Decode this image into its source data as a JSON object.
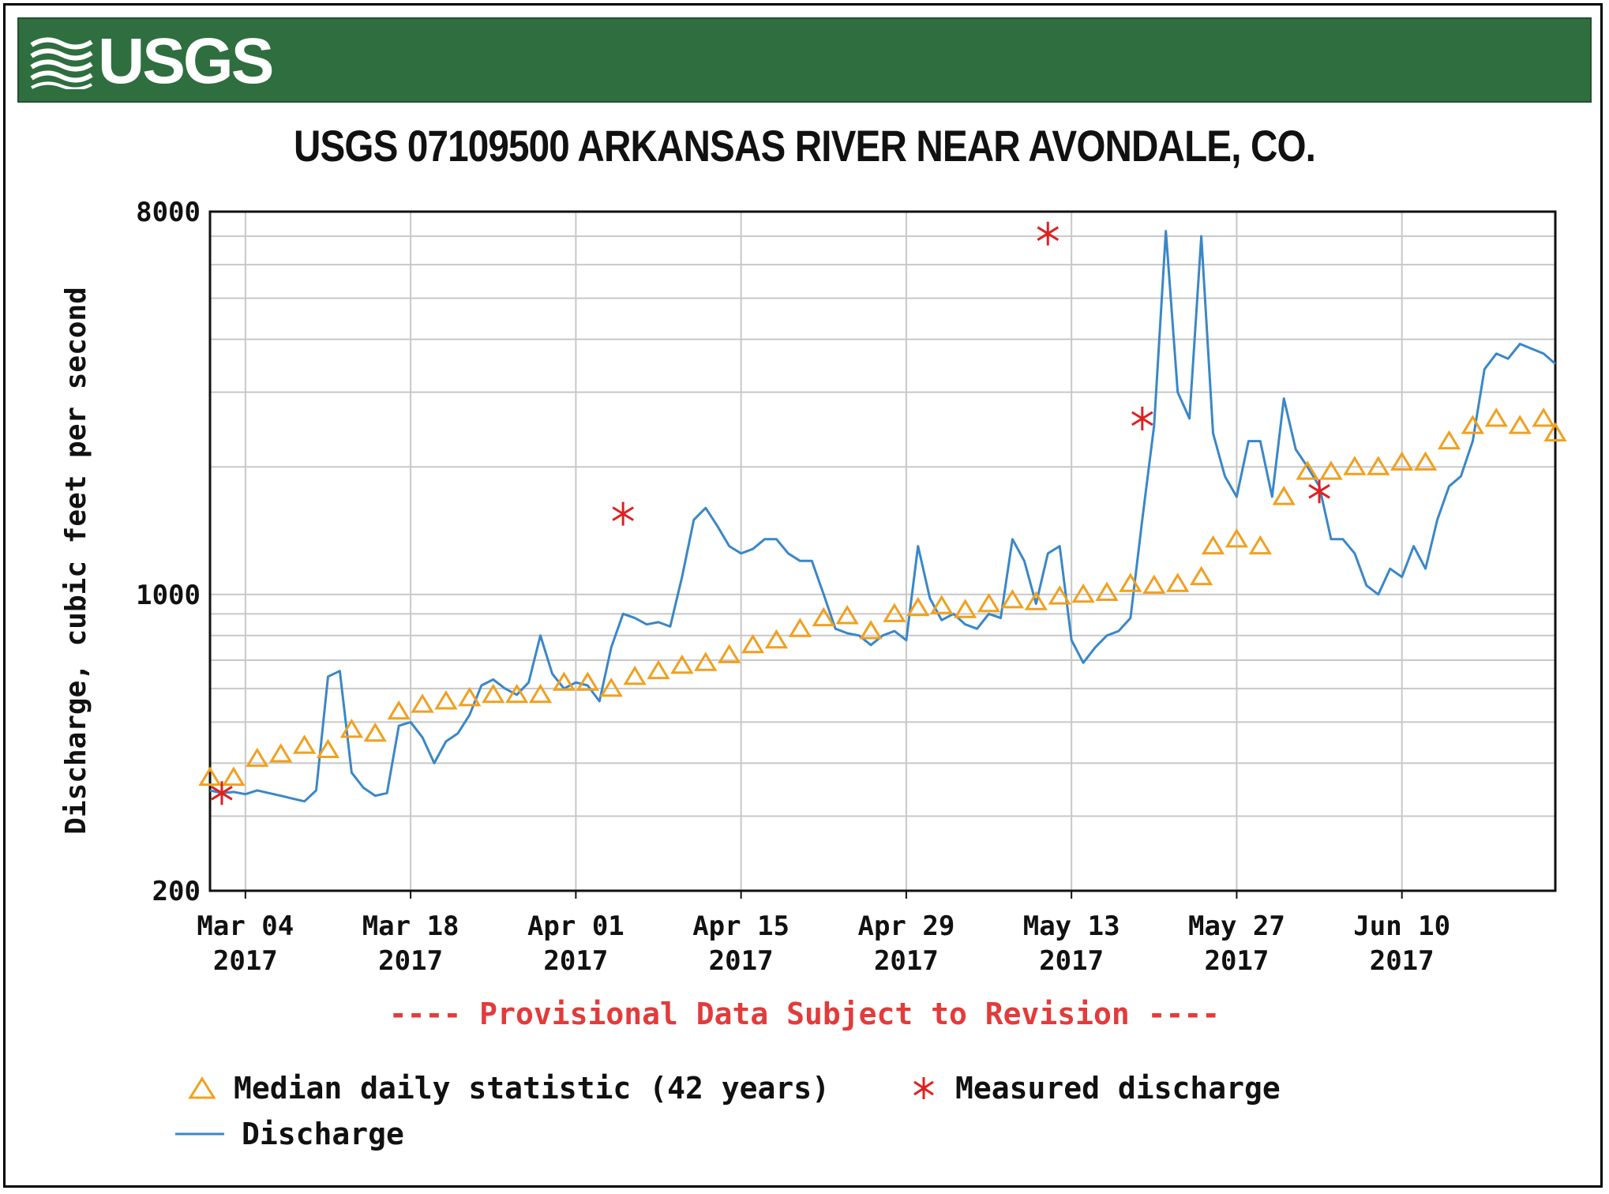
{
  "header": {
    "logo_text": "USGS",
    "logo_icon": "usgs-wave-icon",
    "background": "#2e6e3f"
  },
  "chart_data": {
    "type": "line",
    "title": "USGS 07109500 ARKANSAS RIVER NEAR AVONDALE, CO.",
    "ylabel": "Discharge, cubic feet per second",
    "xlabel": "",
    "yscale": "log",
    "ylim": [
      200,
      8000
    ],
    "y_ticks": [
      "200",
      "1000",
      "8000"
    ],
    "x_ticks": [
      {
        "date": "2017-03-04",
        "label": [
          "Mar 04",
          "2017"
        ]
      },
      {
        "date": "2017-03-18",
        "label": [
          "Mar 18",
          "2017"
        ]
      },
      {
        "date": "2017-04-01",
        "label": [
          "Apr 01",
          "2017"
        ]
      },
      {
        "date": "2017-04-15",
        "label": [
          "Apr 15",
          "2017"
        ]
      },
      {
        "date": "2017-04-29",
        "label": [
          "Apr 29",
          "2017"
        ]
      },
      {
        "date": "2017-05-13",
        "label": [
          "May 13",
          "2017"
        ]
      },
      {
        "date": "2017-05-27",
        "label": [
          "May 27",
          "2017"
        ]
      },
      {
        "date": "2017-06-10",
        "label": [
          "Jun 10",
          "2017"
        ]
      }
    ],
    "xlim": [
      "2017-03-01",
      "2017-06-23"
    ],
    "grid": true,
    "colors": {
      "discharge": "#3a87c8",
      "median": "#f0a020",
      "measured": "#e02020"
    },
    "series": [
      {
        "name": "Discharge",
        "style": "line",
        "points": [
          [
            "2017-03-01",
            345
          ],
          [
            "2017-03-02",
            340
          ],
          [
            "2017-03-03",
            342
          ],
          [
            "2017-03-04",
            338
          ],
          [
            "2017-03-05",
            345
          ],
          [
            "2017-03-06",
            340
          ],
          [
            "2017-03-07",
            335
          ],
          [
            "2017-03-08",
            330
          ],
          [
            "2017-03-09",
            325
          ],
          [
            "2017-03-10",
            345
          ],
          [
            "2017-03-11",
            640
          ],
          [
            "2017-03-12",
            660
          ],
          [
            "2017-03-13",
            380
          ],
          [
            "2017-03-14",
            350
          ],
          [
            "2017-03-15",
            335
          ],
          [
            "2017-03-16",
            340
          ],
          [
            "2017-03-17",
            490
          ],
          [
            "2017-03-18",
            500
          ],
          [
            "2017-03-19",
            460
          ],
          [
            "2017-03-20",
            400
          ],
          [
            "2017-03-21",
            450
          ],
          [
            "2017-03-22",
            470
          ],
          [
            "2017-03-23",
            520
          ],
          [
            "2017-03-24",
            610
          ],
          [
            "2017-03-25",
            630
          ],
          [
            "2017-03-26",
            600
          ],
          [
            "2017-03-27",
            580
          ],
          [
            "2017-03-28",
            620
          ],
          [
            "2017-03-29",
            800
          ],
          [
            "2017-03-30",
            650
          ],
          [
            "2017-03-31",
            600
          ],
          [
            "2017-04-01",
            620
          ],
          [
            "2017-04-02",
            610
          ],
          [
            "2017-04-03",
            560
          ],
          [
            "2017-04-04",
            750
          ],
          [
            "2017-04-05",
            900
          ],
          [
            "2017-04-06",
            880
          ],
          [
            "2017-04-07",
            850
          ],
          [
            "2017-04-08",
            860
          ],
          [
            "2017-04-09",
            840
          ],
          [
            "2017-04-10",
            1100
          ],
          [
            "2017-04-11",
            1500
          ],
          [
            "2017-04-12",
            1600
          ],
          [
            "2017-04-13",
            1450
          ],
          [
            "2017-04-14",
            1300
          ],
          [
            "2017-04-15",
            1250
          ],
          [
            "2017-04-16",
            1280
          ],
          [
            "2017-04-17",
            1350
          ],
          [
            "2017-04-18",
            1350
          ],
          [
            "2017-04-19",
            1250
          ],
          [
            "2017-04-20",
            1200
          ],
          [
            "2017-04-21",
            1200
          ],
          [
            "2017-04-22",
            1000
          ],
          [
            "2017-04-23",
            830
          ],
          [
            "2017-04-24",
            810
          ],
          [
            "2017-04-25",
            800
          ],
          [
            "2017-04-26",
            760
          ],
          [
            "2017-04-27",
            800
          ],
          [
            "2017-04-28",
            820
          ],
          [
            "2017-04-29",
            780
          ],
          [
            "2017-04-30",
            1300
          ],
          [
            "2017-05-01",
            980
          ],
          [
            "2017-05-02",
            870
          ],
          [
            "2017-05-03",
            900
          ],
          [
            "2017-05-04",
            850
          ],
          [
            "2017-05-05",
            830
          ],
          [
            "2017-05-06",
            900
          ],
          [
            "2017-05-07",
            880
          ],
          [
            "2017-05-08",
            1350
          ],
          [
            "2017-05-09",
            1200
          ],
          [
            "2017-05-10",
            950
          ],
          [
            "2017-05-11",
            1250
          ],
          [
            "2017-05-12",
            1300
          ],
          [
            "2017-05-13",
            780
          ],
          [
            "2017-05-14",
            690
          ],
          [
            "2017-05-15",
            750
          ],
          [
            "2017-05-16",
            800
          ],
          [
            "2017-05-17",
            820
          ],
          [
            "2017-05-18",
            880
          ],
          [
            "2017-05-19",
            1500
          ],
          [
            "2017-05-20",
            2500
          ],
          [
            "2017-05-21",
            7200
          ],
          [
            "2017-05-22",
            3000
          ],
          [
            "2017-05-23",
            2600
          ],
          [
            "2017-05-24",
            7000
          ],
          [
            "2017-05-25",
            2400
          ],
          [
            "2017-05-26",
            1900
          ],
          [
            "2017-05-27",
            1700
          ],
          [
            "2017-05-28",
            2300
          ],
          [
            "2017-05-29",
            2300
          ],
          [
            "2017-05-30",
            1700
          ],
          [
            "2017-05-31",
            2900
          ],
          [
            "2017-06-01",
            2200
          ],
          [
            "2017-06-02",
            2000
          ],
          [
            "2017-06-03",
            1800
          ],
          [
            "2017-06-04",
            1350
          ],
          [
            "2017-06-05",
            1350
          ],
          [
            "2017-06-06",
            1250
          ],
          [
            "2017-06-07",
            1050
          ],
          [
            "2017-06-08",
            1000
          ],
          [
            "2017-06-09",
            1150
          ],
          [
            "2017-06-10",
            1100
          ],
          [
            "2017-06-11",
            1300
          ],
          [
            "2017-06-12",
            1150
          ],
          [
            "2017-06-13",
            1500
          ],
          [
            "2017-06-14",
            1800
          ],
          [
            "2017-06-15",
            1900
          ],
          [
            "2017-06-16",
            2300
          ],
          [
            "2017-06-17",
            3400
          ],
          [
            "2017-06-18",
            3700
          ],
          [
            "2017-06-19",
            3600
          ],
          [
            "2017-06-20",
            3900
          ],
          [
            "2017-06-21",
            3800
          ],
          [
            "2017-06-22",
            3700
          ],
          [
            "2017-06-23",
            3500
          ]
        ]
      },
      {
        "name": "Median daily statistic (42 years)",
        "style": "triangles",
        "points": [
          [
            "2017-03-01",
            370
          ],
          [
            "2017-03-03",
            370
          ],
          [
            "2017-03-05",
            410
          ],
          [
            "2017-03-07",
            420
          ],
          [
            "2017-03-09",
            440
          ],
          [
            "2017-03-11",
            430
          ],
          [
            "2017-03-13",
            480
          ],
          [
            "2017-03-15",
            470
          ],
          [
            "2017-03-17",
            530
          ],
          [
            "2017-03-19",
            550
          ],
          [
            "2017-03-21",
            560
          ],
          [
            "2017-03-23",
            570
          ],
          [
            "2017-03-25",
            580
          ],
          [
            "2017-03-27",
            580
          ],
          [
            "2017-03-29",
            580
          ],
          [
            "2017-03-31",
            620
          ],
          [
            "2017-04-02",
            620
          ],
          [
            "2017-04-04",
            600
          ],
          [
            "2017-04-06",
            640
          ],
          [
            "2017-04-08",
            660
          ],
          [
            "2017-04-10",
            680
          ],
          [
            "2017-04-12",
            690
          ],
          [
            "2017-04-14",
            720
          ],
          [
            "2017-04-16",
            760
          ],
          [
            "2017-04-18",
            780
          ],
          [
            "2017-04-20",
            830
          ],
          [
            "2017-04-22",
            880
          ],
          [
            "2017-04-24",
            890
          ],
          [
            "2017-04-26",
            820
          ],
          [
            "2017-04-28",
            900
          ],
          [
            "2017-04-30",
            930
          ],
          [
            "2017-05-02",
            940
          ],
          [
            "2017-05-04",
            920
          ],
          [
            "2017-05-06",
            950
          ],
          [
            "2017-05-08",
            970
          ],
          [
            "2017-05-10",
            960
          ],
          [
            "2017-05-12",
            990
          ],
          [
            "2017-05-14",
            1000
          ],
          [
            "2017-05-16",
            1010
          ],
          [
            "2017-05-18",
            1060
          ],
          [
            "2017-05-20",
            1050
          ],
          [
            "2017-05-22",
            1060
          ],
          [
            "2017-05-24",
            1100
          ],
          [
            "2017-05-25",
            1300
          ],
          [
            "2017-05-27",
            1350
          ],
          [
            "2017-05-29",
            1300
          ],
          [
            "2017-05-31",
            1700
          ],
          [
            "2017-06-02",
            1950
          ],
          [
            "2017-06-04",
            1950
          ],
          [
            "2017-06-06",
            2000
          ],
          [
            "2017-06-08",
            2000
          ],
          [
            "2017-06-10",
            2050
          ],
          [
            "2017-06-12",
            2050
          ],
          [
            "2017-06-14",
            2300
          ],
          [
            "2017-06-16",
            2500
          ],
          [
            "2017-06-18",
            2600
          ],
          [
            "2017-06-20",
            2500
          ],
          [
            "2017-06-22",
            2600
          ],
          [
            "2017-06-23",
            2400
          ]
        ]
      },
      {
        "name": "Measured discharge",
        "style": "asterisks",
        "points": [
          [
            "2017-03-02",
            340
          ],
          [
            "2017-04-05",
            1550
          ],
          [
            "2017-05-11",
            7100
          ],
          [
            "2017-05-19",
            2600
          ],
          [
            "2017-06-03",
            1750
          ]
        ]
      }
    ]
  },
  "provisional_note": "---- Provisional Data Subject to Revision ----",
  "legend": {
    "median_label": "Median daily statistic (42 years)",
    "measured_label": "Measured discharge",
    "discharge_label": "Discharge"
  }
}
